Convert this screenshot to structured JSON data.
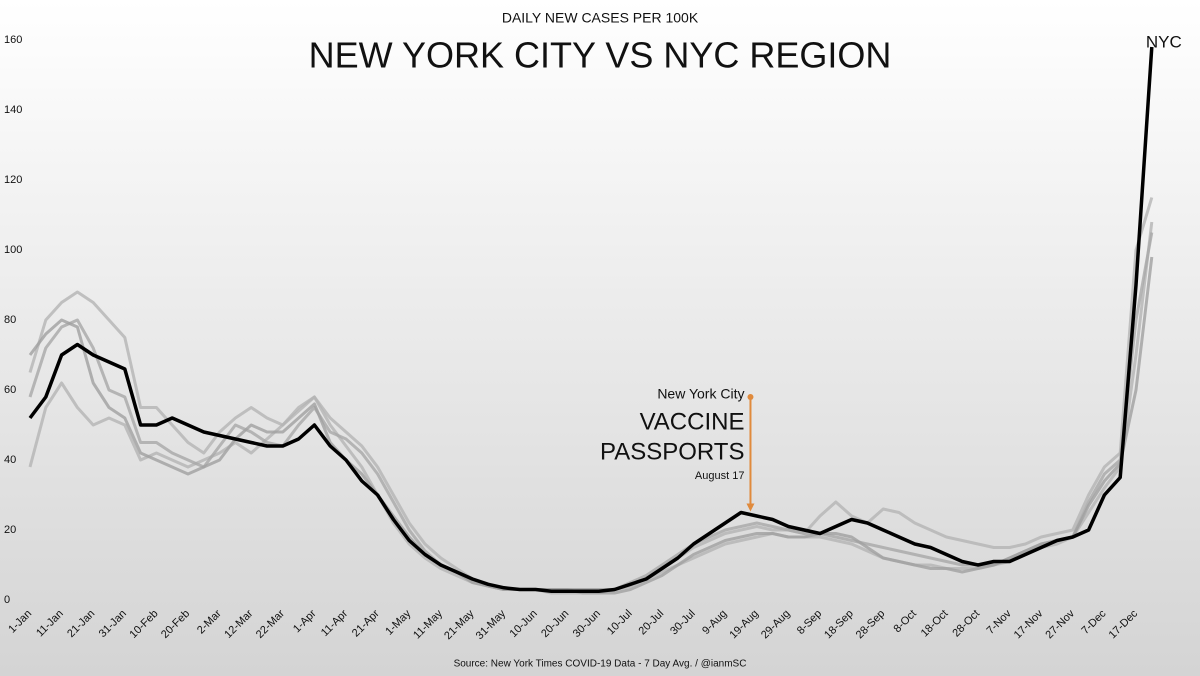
{
  "chart_data": {
    "type": "line",
    "subtitle": "DAILY NEW CASES PER 100K",
    "title": "NEW YORK CITY VS NYC REGION",
    "source": "Source: New York Times COVID-19 Data - 7 Day Avg. / @ianmSC",
    "categories": [
      "1-Jan",
      null,
      "11-Jan",
      null,
      "21-Jan",
      null,
      "31-Jan",
      null,
      "10-Feb",
      null,
      "20-Feb",
      null,
      "2-Mar",
      null,
      "12-Mar",
      null,
      "22-Mar",
      null,
      "1-Apr",
      null,
      "11-Apr",
      null,
      "21-Apr",
      null,
      "1-May",
      null,
      "11-May",
      null,
      "21-May",
      null,
      "31-May",
      null,
      "10-Jun",
      null,
      "20-Jun",
      null,
      "30-Jun",
      null,
      "10-Jul",
      null,
      "20-Jul",
      null,
      "30-Jul",
      null,
      "9-Aug",
      null,
      "19-Aug",
      null,
      "29-Aug",
      null,
      "8-Sep",
      null,
      "18-Sep",
      null,
      "28-Sep",
      null,
      "8-Oct",
      null,
      "18-Oct",
      null,
      "28-Oct",
      null,
      "7-Nov",
      null,
      "17-Nov",
      null,
      "27-Nov",
      null,
      "7-Dec",
      null,
      "17-Dec",
      null
    ],
    "series": [
      {
        "color": "#b4b4b4",
        "values": [
          65,
          80,
          85,
          88,
          85,
          80,
          75,
          55,
          55,
          50,
          45,
          42,
          48,
          52,
          55,
          52,
          50,
          55,
          58,
          52,
          48,
          44,
          38,
          30,
          22,
          16,
          12,
          9,
          6,
          4,
          3,
          3,
          3,
          3,
          3,
          3,
          3,
          3,
          4,
          6,
          9,
          12,
          15,
          17,
          19,
          20,
          21,
          20,
          20,
          19,
          24,
          28,
          24,
          22,
          26,
          25,
          22,
          20,
          18,
          17,
          16,
          15,
          15,
          16,
          18,
          19,
          20,
          30,
          38,
          42,
          100,
          115
        ]
      },
      {
        "color": "#b4b4b4",
        "values": [
          38,
          55,
          62,
          55,
          50,
          52,
          50,
          40,
          42,
          40,
          38,
          40,
          42,
          45,
          42,
          46,
          50,
          54,
          58,
          50,
          44,
          38,
          30,
          22,
          16,
          12,
          9,
          7,
          5,
          4,
          3,
          3,
          3,
          2,
          2,
          2,
          2,
          3,
          4,
          6,
          8,
          10,
          12,
          14,
          16,
          17,
          18,
          19,
          18,
          18,
          18,
          17,
          16,
          14,
          12,
          11,
          10,
          10,
          9,
          9,
          9,
          10,
          11,
          13,
          15,
          16,
          18,
          25,
          32,
          38,
          70,
          108
        ]
      },
      {
        "color": "#a8a8a8",
        "values": [
          58,
          72,
          78,
          80,
          72,
          60,
          58,
          45,
          45,
          42,
          40,
          38,
          44,
          50,
          48,
          45,
          44,
          50,
          55,
          48,
          46,
          42,
          36,
          28,
          20,
          14,
          10,
          8,
          6,
          4,
          3,
          3,
          3,
          3,
          3,
          3,
          3,
          3,
          5,
          7,
          10,
          13,
          16,
          18,
          20,
          21,
          22,
          21,
          20,
          19,
          19,
          18,
          17,
          16,
          15,
          14,
          13,
          12,
          11,
          10,
          10,
          10,
          12,
          14,
          16,
          17,
          18,
          28,
          36,
          40,
          80,
          105
        ]
      },
      {
        "color": "#a0a0a0",
        "values": [
          70,
          76,
          80,
          78,
          62,
          55,
          52,
          42,
          40,
          38,
          36,
          38,
          40,
          46,
          50,
          48,
          48,
          52,
          56,
          45,
          40,
          36,
          30,
          24,
          18,
          13,
          10,
          8,
          5,
          4,
          3,
          3,
          3,
          3,
          3,
          2,
          2,
          2,
          3,
          5,
          7,
          10,
          13,
          15,
          17,
          18,
          19,
          19,
          18,
          18,
          19,
          19,
          18,
          15,
          12,
          11,
          10,
          9,
          9,
          8,
          9,
          10,
          12,
          14,
          16,
          17,
          18,
          27,
          34,
          39,
          60,
          98
        ]
      },
      {
        "name": "NYC",
        "color": "#000000",
        "values": [
          52,
          58,
          70,
          73,
          70,
          68,
          66,
          50,
          50,
          52,
          50,
          48,
          47,
          46,
          45,
          44,
          44,
          46,
          50,
          44,
          40,
          34,
          30,
          23,
          17,
          13,
          10,
          8,
          6,
          4.5,
          3.5,
          3,
          3,
          2.5,
          2.5,
          2.5,
          2.5,
          3,
          4.5,
          6,
          9,
          12,
          16,
          19,
          22,
          25,
          24,
          23,
          21,
          20,
          19,
          21,
          23,
          22,
          20,
          18,
          16,
          15,
          13,
          11,
          10,
          11,
          11,
          13,
          15,
          17,
          18,
          20,
          30,
          35,
          90,
          158
        ]
      }
    ],
    "ylim": [
      0,
      160
    ],
    "yticks": [
      0,
      20,
      40,
      60,
      80,
      100,
      120,
      140,
      160
    ],
    "grid": false,
    "annotation": {
      "lines": [
        "New York City",
        "VACCINE",
        "PASSPORTS",
        "August 17"
      ],
      "from": 58,
      "to": 25,
      "color": "#e08a3c"
    }
  }
}
